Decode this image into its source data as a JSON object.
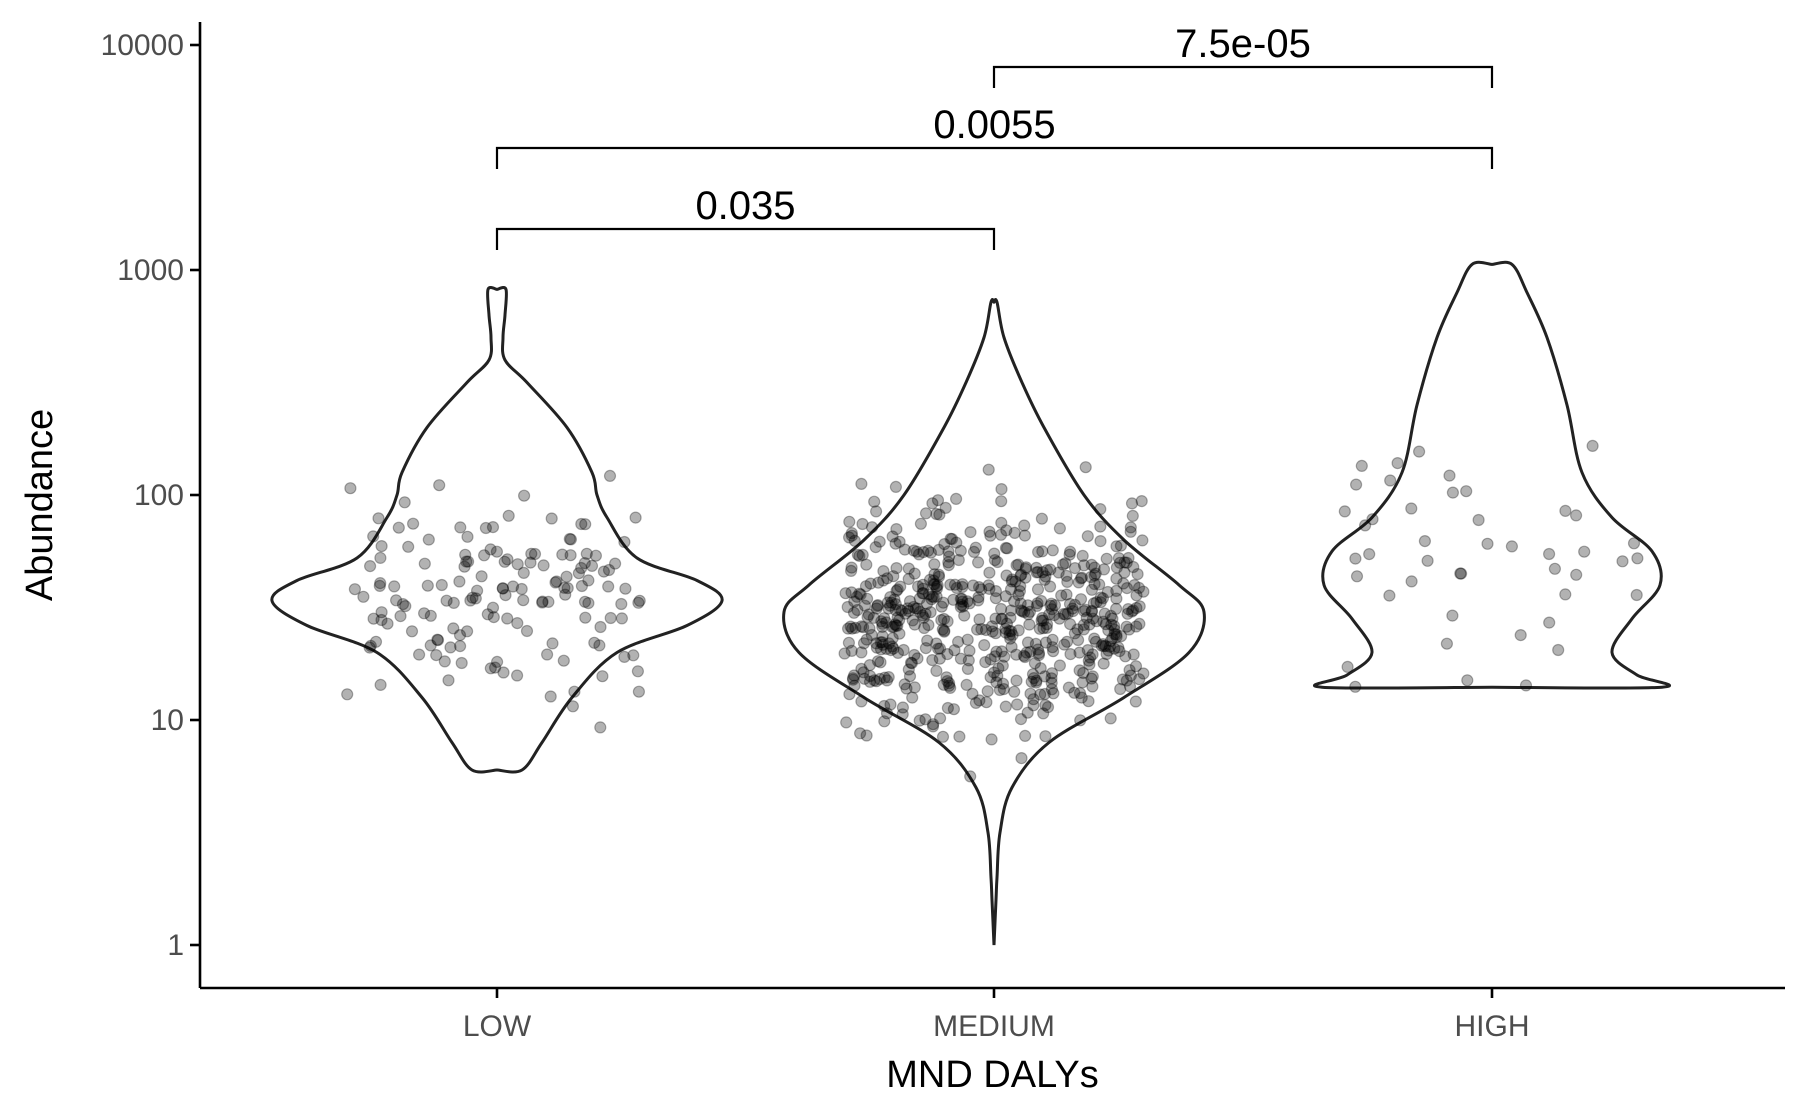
{
  "chart_data": {
    "type": "violin",
    "xlabel": "MND DALYs",
    "ylabel": "Abundance",
    "y_scale": "log10",
    "ylim": [
      0.8,
      12000
    ],
    "y_ticks": [
      1,
      10,
      100,
      1000,
      10000
    ],
    "y_tick_labels": [
      "1",
      "10",
      "100",
      "1000",
      "10000"
    ],
    "categories": [
      "LOW",
      "MEDIUM",
      "HIGH"
    ],
    "grid": false,
    "legend": "none",
    "groups": [
      {
        "category": "LOW",
        "min": 6,
        "max": 820,
        "density_peak": 33
      },
      {
        "category": "MEDIUM",
        "min": 1,
        "max": 720,
        "density_peak": 30
      },
      {
        "category": "HIGH",
        "min": 14,
        "max": 1060,
        "density_peak": 40
      }
    ],
    "comparisons": [
      {
        "from": "LOW",
        "to": "MEDIUM",
        "p_label": "0.035"
      },
      {
        "from": "LOW",
        "to": "HIGH",
        "p_label": "0.0055"
      },
      {
        "from": "MEDIUM",
        "to": "HIGH",
        "p_label": "7.5e-05"
      }
    ]
  }
}
